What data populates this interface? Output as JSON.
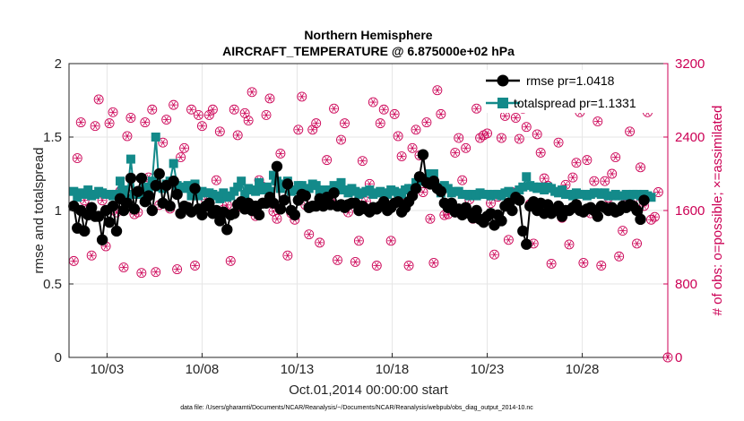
{
  "chart_data": {
    "type": "line",
    "title": "Northern Hemisphere",
    "subtitle": "AIRCRAFT_TEMPERATURE @ 6.875000e+02 hPa",
    "xlabel": "Oct.01,2014 00:00:00 start",
    "ylabel": "rmse and totalspread",
    "y2label": "# of obs: o=possible; ×=assimilated",
    "xlim": [
      1,
      32.5
    ],
    "ylim": [
      0,
      2
    ],
    "y2lim": [
      0,
      3200
    ],
    "x_ticks": [
      3,
      8,
      13,
      18,
      23,
      28
    ],
    "x_tick_labels": [
      "10/03",
      "10/08",
      "10/13",
      "10/18",
      "10/23",
      "10/28"
    ],
    "y_ticks": [
      0,
      0.5,
      1,
      1.5,
      2
    ],
    "y_tick_labels": [
      "0",
      "0.5",
      "1",
      "1.5",
      "2"
    ],
    "y2_ticks": [
      0,
      800,
      1600,
      2400,
      3200
    ],
    "y2_tick_labels": [
      "0",
      "800",
      "1600",
      "2400",
      "3200"
    ],
    "grid": true,
    "legend_position": "top-right",
    "colors": {
      "rmse": "#000000",
      "spread": "#138a8a",
      "obs": "#cc0055"
    },
    "series": [
      {
        "name": "rmse pr=1.0418",
        "key": "rmse",
        "values": [
          1.03,
          0.88,
          1.0,
          0.86,
          0.97,
          1.02,
          0.96,
          0.96,
          0.8,
          1.0,
          0.92,
          1.03,
          0.86,
          1.08,
          1.0,
          1.05,
          1.22,
          1.01,
          1.13,
          1.22,
          1.06,
          1.1,
          1.0,
          1.17,
          1.25,
          1.05,
          1.17,
          1.03,
          1.2,
          1.11,
          0.98,
          1.03,
          1.02,
          0.99,
          1.15,
          1.01,
          0.97,
          1.03,
          1.05,
          0.98,
          1.0,
          0.93,
          0.99,
          0.87,
          0.97,
          0.98,
          1.04,
          1.06,
          1.01,
          1.05,
          1.0,
          1.03,
          0.97,
          1.05,
          1.05,
          1.09,
          1.05,
          1.3,
          1.01,
          1.07,
          1.18,
          1.0,
          0.97,
          1.07,
          1.11,
          1.1,
          1.02,
          1.03,
          1.03,
          1.08,
          1.03,
          1.09,
          1.04,
          1.12,
          1.03,
          1.04,
          1.02,
          1.04,
          1.05,
          1.05,
          1.0,
          1.03,
          1.01,
          0.99,
          1.02,
          1.01,
          1.03,
          1.06,
          1.0,
          1.02,
          1.05,
          1.06,
          0.99,
          1.02,
          1.06,
          1.1,
          1.15,
          1.23,
          1.38,
          1.19,
          1.18,
          1.2,
          1.15,
          1.13,
          1.05,
          1.02,
          1.05,
          0.99,
          1.01,
          0.97,
          1.02,
          0.98,
          0.95,
          1.0,
          0.94,
          0.92,
          0.96,
          0.98,
          0.9,
          0.97,
          0.93,
          1.03,
          1.05,
          1.0,
          1.09,
          1.07,
          0.86,
          0.77,
          1.03,
          1.06,
          1.0,
          1.05,
          0.98,
          1.04,
          0.98,
          1.0,
          1.03,
          0.96,
          1.0,
          1.0,
          1.02,
          1.04,
          1.0,
          0.99,
          1.01,
          1.02,
          1.0,
          0.96,
          1.03,
          1.02,
          1.0,
          1.02,
          0.99,
          1.0,
          1.03,
          1.02,
          1.04,
          1.03,
          1.0,
          0.94,
          1.07
        ]
      },
      {
        "name": "totalspread pr=1.1331",
        "key": "spread",
        "values": [
          1.13,
          1.09,
          1.12,
          1.11,
          1.14,
          1.1,
          1.11,
          1.13,
          1.12,
          1.11,
          1.11,
          1.1,
          1.11,
          1.2,
          1.14,
          1.08,
          1.35,
          1.11,
          1.11,
          1.12,
          1.16,
          1.13,
          1.2,
          1.5,
          1.16,
          1.15,
          1.18,
          1.2,
          1.32,
          1.17,
          1.16,
          1.15,
          1.17,
          1.1,
          1.18,
          1.1,
          1.13,
          1.12,
          1.12,
          1.11,
          1.1,
          1.08,
          1.12,
          1.09,
          1.1,
          1.13,
          1.16,
          1.2,
          1.11,
          1.15,
          1.14,
          1.13,
          1.19,
          1.14,
          1.16,
          1.13,
          1.24,
          1.2,
          1.15,
          1.18,
          1.2,
          1.13,
          1.14,
          1.17,
          1.17,
          1.15,
          1.15,
          1.18,
          1.17,
          1.13,
          1.14,
          1.11,
          1.14,
          1.17,
          1.14,
          1.19,
          1.14,
          1.12,
          1.15,
          1.13,
          1.11,
          1.12,
          1.13,
          1.14,
          1.11,
          1.12,
          1.13,
          1.12,
          1.11,
          1.14,
          1.13,
          1.12,
          1.11,
          1.14,
          1.15,
          1.15,
          1.19,
          1.21,
          1.2,
          1.22,
          1.25,
          1.25,
          1.16,
          1.12,
          1.17,
          1.15,
          1.12,
          1.13,
          1.13,
          1.11,
          1.11,
          1.1,
          1.11,
          1.1,
          1.12,
          1.11,
          1.11,
          1.1,
          1.11,
          1.11,
          1.1,
          1.12,
          1.13,
          1.11,
          1.12,
          1.14,
          1.16,
          1.23,
          1.17,
          1.16,
          1.15,
          1.16,
          1.14,
          1.16,
          1.15,
          1.13,
          1.12,
          1.14,
          1.11,
          1.11,
          1.1,
          1.12,
          1.11,
          1.11,
          1.1,
          1.11,
          1.12,
          1.12,
          1.11,
          1.12,
          1.1,
          1.1,
          1.11,
          1.1,
          1.1,
          1.11,
          1.1,
          1.11,
          1.11,
          1.1,
          1.11,
          1.1,
          1.09
        ]
      },
      {
        "name": "obs possible",
        "key": "obs",
        "values": [
          1050,
          2170,
          2560,
          1710,
          1610,
          1110,
          2520,
          2810,
          1710,
          1210,
          2550,
          2670,
          1580,
          1810,
          980,
          2410,
          2610,
          1560,
          1580,
          920,
          2560,
          1960,
          2700,
          930,
          1660,
          2340,
          2590,
          1620,
          2750,
          960,
          2180,
          2280,
          1640,
          2700,
          1000,
          2640,
          2520,
          1720,
          2640,
          2700,
          1930,
          2460,
          1610,
          1660,
          1050,
          2700,
          2420,
          1640,
          2660,
          2580,
          2890,
          1540,
          1930,
          1860,
          2640,
          2820,
          1590,
          1510,
          2220,
          1720,
          1110,
          1570,
          1500,
          2480,
          2840,
          1660,
          1340,
          2480,
          2550,
          1250,
          1750,
          2150,
          1690,
          2710,
          1060,
          2370,
          2550,
          1580,
          1820,
          1040,
          1270,
          2140,
          1700,
          1890,
          2780,
          1000,
          2550,
          2700,
          1790,
          1270,
          2650,
          2410,
          2190,
          1680,
          1000,
          2280,
          2480,
          2200,
          1800,
          2560,
          1510,
          1030,
          2910,
          2650,
          1550,
          1560,
          1610,
          2230,
          2390,
          1930,
          2280,
          1720,
          1510,
          2710,
          2390,
          2420,
          2440,
          1680,
          1120,
          1750,
          2390,
          2630,
          1280,
          1800,
          2610,
          2380,
          2710,
          2510,
          1670,
          1240,
          2430,
          2230,
          1950,
          1870,
          1020,
          2760,
          2340,
          1520,
          1880,
          1230,
          1960,
          2120,
          2670,
          1030,
          2150,
          1570,
          1920,
          2570,
          1000,
          1920,
          1740,
          2000,
          2180,
          1100,
          1380,
          1710,
          2460,
          1730,
          1240,
          2070,
          1650,
          2670,
          1500,
          1530,
          1800
        ]
      }
    ]
  }
}
